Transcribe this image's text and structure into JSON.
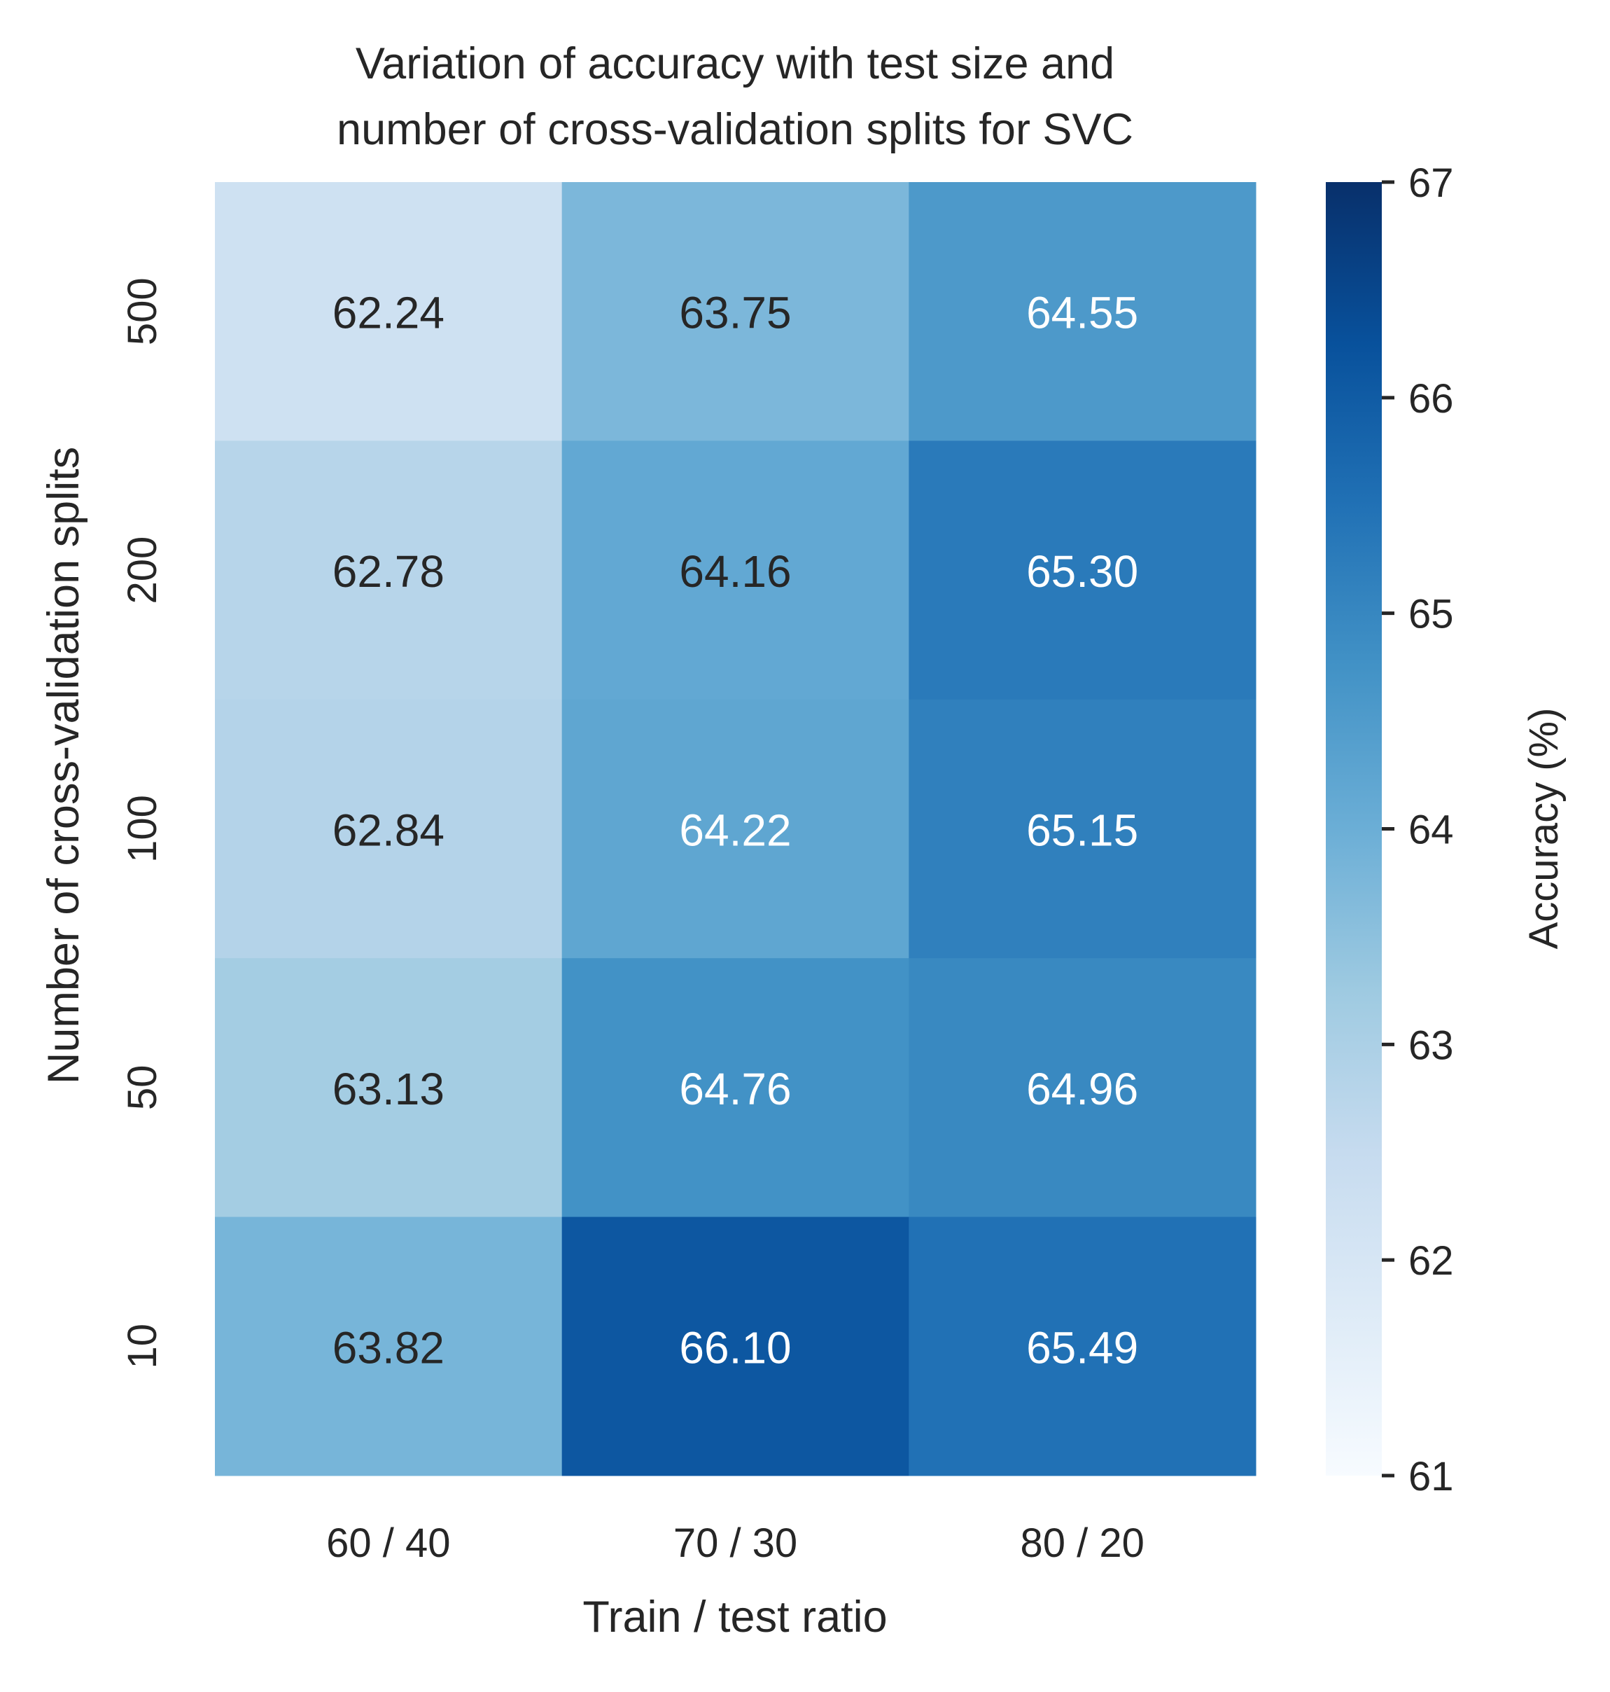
{
  "chart_data": {
    "type": "heatmap",
    "title_lines": [
      "Variation of accuracy with test size and",
      "number of cross-validation splits for SVC"
    ],
    "xlabel": "Train / test ratio",
    "ylabel": "Number of cross-validation splits",
    "x_categories": [
      "60 / 40",
      "70 / 30",
      "80 / 20"
    ],
    "y_categories": [
      "500",
      "200",
      "100",
      "50",
      "10"
    ],
    "values": [
      [
        62.24,
        63.75,
        64.55
      ],
      [
        62.78,
        64.16,
        65.3
      ],
      [
        62.84,
        64.22,
        65.15
      ],
      [
        63.13,
        64.76,
        64.96
      ],
      [
        63.82,
        66.1,
        65.49
      ]
    ],
    "value_format": "2 decimals",
    "colormap": "Blues",
    "vmin": 61,
    "vmax": 67,
    "colorbar": {
      "label": "Accuracy (%)",
      "ticks": [
        61,
        62,
        63,
        64,
        65,
        66,
        67
      ]
    },
    "colors": {
      "text_dark": "#262626",
      "text_light": "#ffffff",
      "blues_scale": [
        "#f7fbff",
        "#deebf7",
        "#c6dbef",
        "#9ecae1",
        "#6baed6",
        "#4292c6",
        "#2171b5",
        "#08519c",
        "#08306b"
      ]
    }
  }
}
